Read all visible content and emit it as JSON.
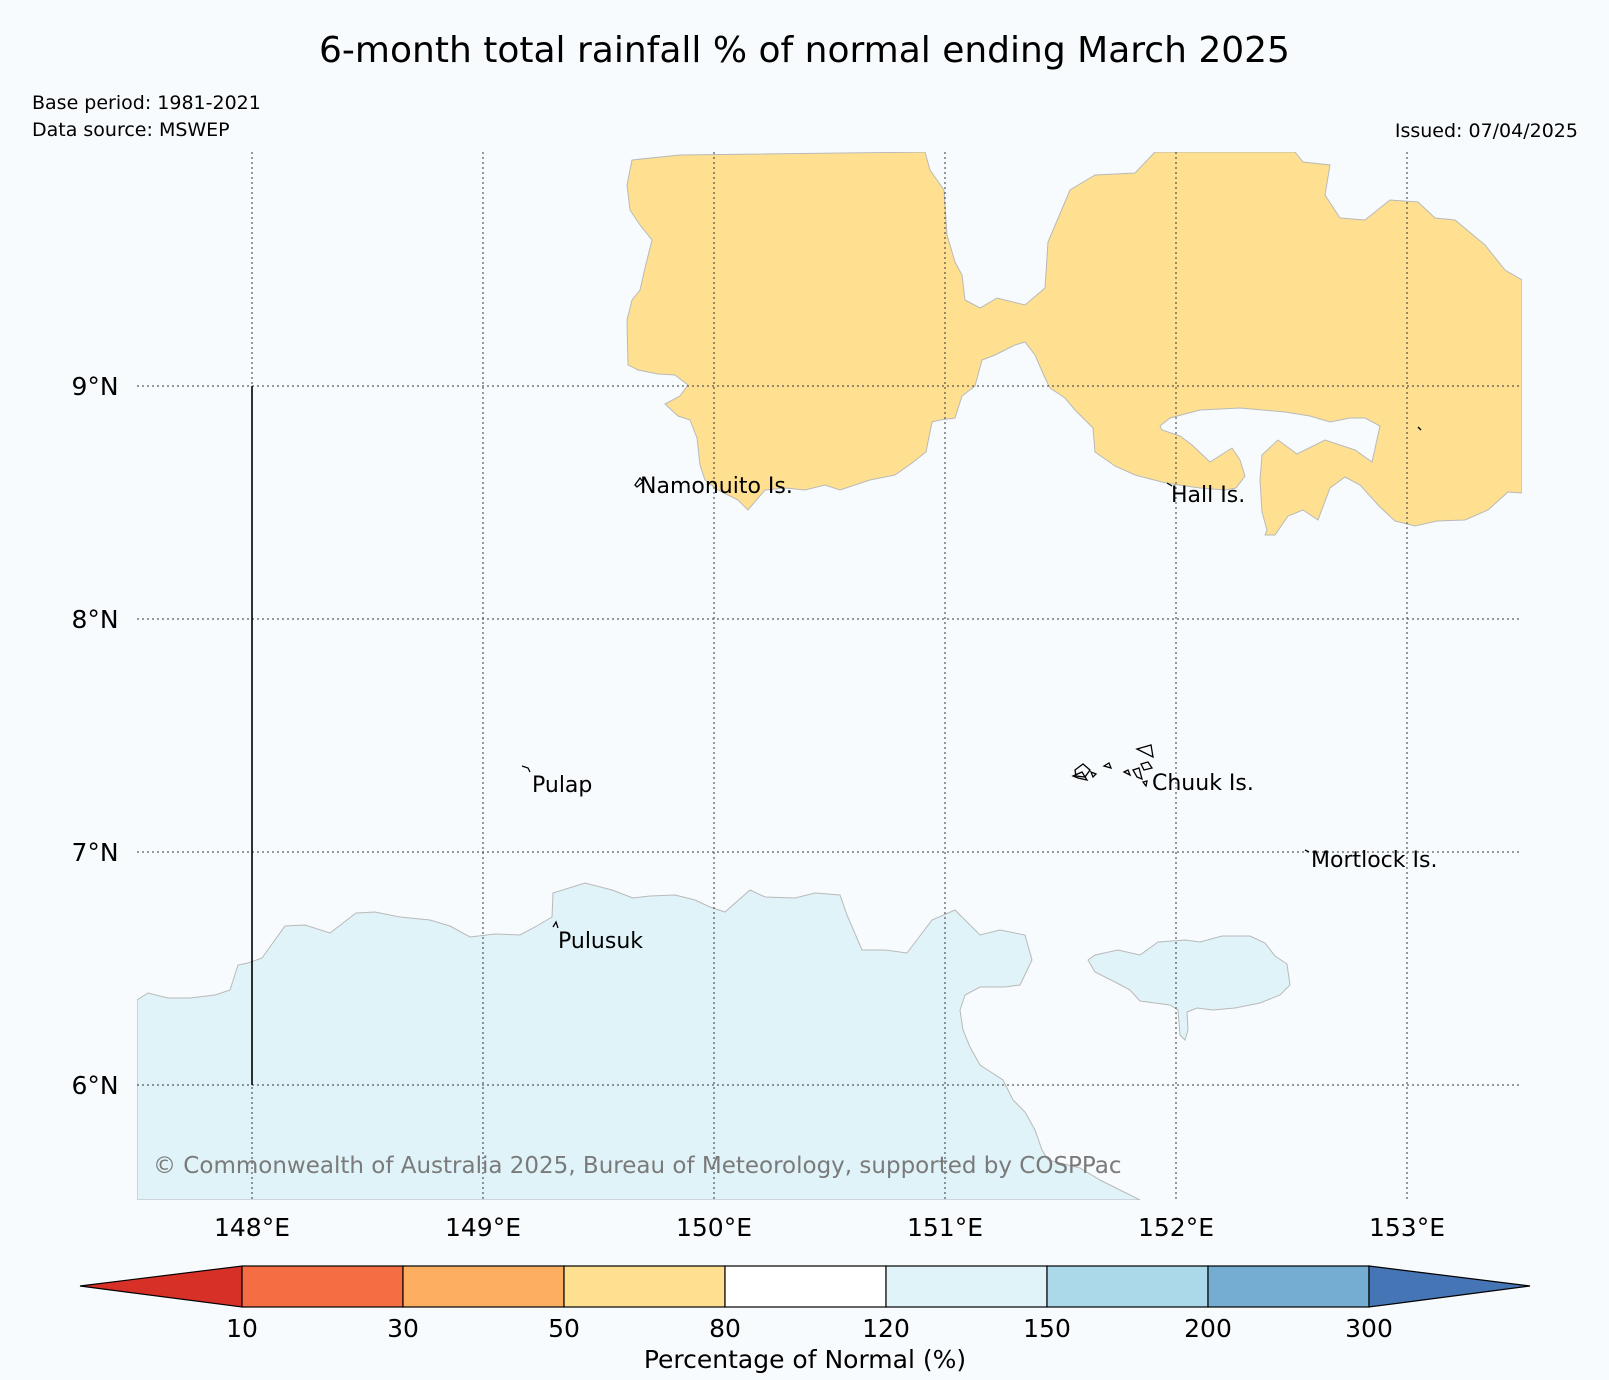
{
  "title": "6-month total rainfall % of normal ending March 2025",
  "meta": {
    "base_period": "Base period: 1981-2021",
    "data_source": "Data source: MSWEP",
    "issued": "Issued: 07/04/2025"
  },
  "axes": {
    "lon_ticks": [
      "148°E",
      "149°E",
      "150°E",
      "151°E",
      "152°E",
      "153°E"
    ],
    "lat_ticks": [
      "9°N",
      "8°N",
      "7°N",
      "6°N"
    ]
  },
  "places": {
    "namonuito": "Namonuito Is.",
    "hall": "Hall Is.",
    "pulap": "Pulap",
    "chuuk": "Chuuk Is.",
    "mortlock": "Mortlock Is.",
    "pulusuk": "Pulusuk"
  },
  "copyright": "© Commonwealth of Australia 2025, Bureau of Meteorology, supported by COSPPac",
  "colorbar": {
    "label": "Percentage of Normal (%)",
    "ticks": [
      "10",
      "30",
      "50",
      "80",
      "120",
      "150",
      "200",
      "300"
    ],
    "colors": {
      "below_10": "#d73027",
      "10_30": "#f46d43",
      "30_50": "#fdae61",
      "50_80": "#fee090",
      "80_120": "#ffffff",
      "120_150": "#e0f3f8",
      "150_200": "#abd9e9",
      "200_300": "#74add1",
      "above_300": "#4575b4"
    }
  }
}
